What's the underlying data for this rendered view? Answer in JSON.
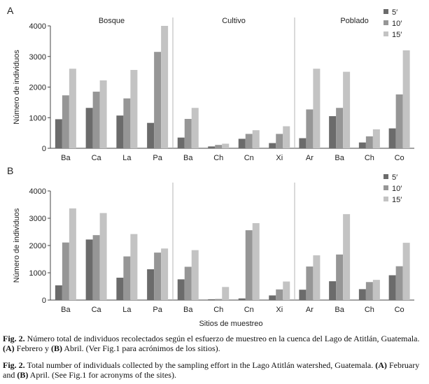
{
  "chart_data": [
    {
      "type": "bar",
      "panel_label": "A",
      "ylabel": "Número de individuos",
      "ylim": [
        0,
        4000
      ],
      "yticks": [
        "0",
        "1000",
        "2000",
        "3000",
        "4000"
      ],
      "groups": [
        {
          "name": "Bosque",
          "categories": [
            "Ba",
            "Ca",
            "La",
            "Pa"
          ]
        },
        {
          "name": "Cultivo",
          "categories": [
            "Ba",
            "Ch",
            "Cn",
            "Xi"
          ]
        },
        {
          "name": "Poblado",
          "categories": [
            "Ar",
            "Ba",
            "Ch",
            "Co"
          ]
        }
      ],
      "series": [
        {
          "name": "5′",
          "color": "#6b6b6b",
          "values": [
            950,
            1320,
            1070,
            830,
            350,
            60,
            310,
            170,
            330,
            1050,
            190,
            650
          ]
        },
        {
          "name": "10′",
          "color": "#969696",
          "values": [
            1730,
            1850,
            1630,
            3150,
            960,
            110,
            470,
            470,
            1270,
            1320,
            390,
            1760
          ]
        },
        {
          "name": "15′",
          "color": "#c3c3c3",
          "values": [
            2600,
            2220,
            2560,
            4000,
            1320,
            150,
            590,
            720,
            2600,
            2500,
            620,
            3200
          ]
        }
      ],
      "legend": "top-right"
    },
    {
      "type": "bar",
      "panel_label": "B",
      "ylabel": "Número de individuos",
      "xlabel": "Sitios de muestreo",
      "ylim": [
        0,
        4000
      ],
      "yticks": [
        "0",
        "1000",
        "2000",
        "3000",
        "4000"
      ],
      "groups": [
        {
          "name": "",
          "categories": [
            "Ba",
            "Ca",
            "La",
            "Pa"
          ]
        },
        {
          "name": "",
          "categories": [
            "Ba",
            "Ch",
            "Cn",
            "Xi"
          ]
        },
        {
          "name": "",
          "categories": [
            "Ar",
            "Ba",
            "Ch",
            "Co"
          ]
        }
      ],
      "series": [
        {
          "name": "5′",
          "color": "#6b6b6b",
          "values": [
            540,
            2220,
            820,
            1130,
            760,
            30,
            60,
            170,
            380,
            690,
            400,
            910
          ]
        },
        {
          "name": "10′",
          "color": "#969696",
          "values": [
            2110,
            2380,
            1600,
            1740,
            1220,
            40,
            2560,
            390,
            1230,
            1670,
            660,
            1240
          ]
        },
        {
          "name": "15′",
          "color": "#c3c3c3",
          "values": [
            3360,
            3190,
            2420,
            1890,
            1830,
            480,
            2820,
            680,
            1640,
            3150,
            740,
            2100
          ]
        }
      ],
      "legend": "top-right"
    }
  ],
  "caption": {
    "es_fig": "Fig. 2.",
    "es_pre": " Número total de individuos recolectados según el esfuerzo de muestreo en la cuenca del Lago de Atitlán, Guatemala. ",
    "es_a": "(A)",
    "es_mid1": " Febrero y ",
    "es_b": "(B)",
    "es_post": " Abril. (Ver Fig.1 para acrónimos de los sitios).",
    "en_fig": "Fig. 2.",
    "en_pre": " Total number of individuals collected by the sampling effort in the Lago Atitlán watershed, Guatemala. ",
    "en_a": "(A)",
    "en_mid1": " February and ",
    "en_b": "(B)",
    "en_post": " April. (See Fig.1 for acronyms of the sites)."
  }
}
